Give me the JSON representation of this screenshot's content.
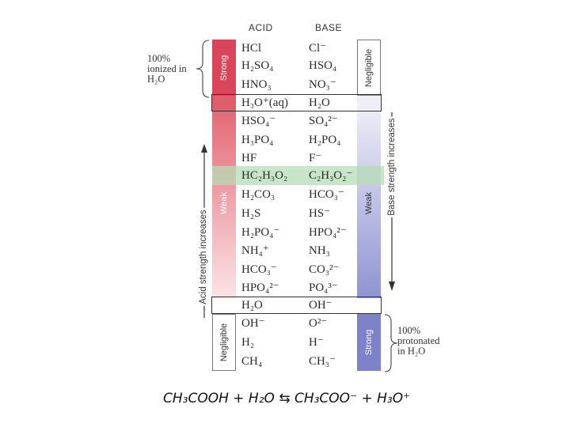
{
  "headers": {
    "acid": "ACID",
    "base": "BASE"
  },
  "pairs": [
    {
      "acid": "HCl",
      "base": "Cl⁻"
    },
    {
      "acid": "H₂SO₄",
      "base": "HSO₄"
    },
    {
      "acid": "HNO₃",
      "base": "NO₃⁻"
    },
    {
      "acid": "H₃O⁺(aq)",
      "base": "H₂O"
    },
    {
      "acid": "HSO₄⁻",
      "base": "SO₄²⁻"
    },
    {
      "acid": "H₃PO₄",
      "base": "H₂PO₄"
    },
    {
      "acid": "HF",
      "base": "F⁻"
    },
    {
      "acid": "HC₂H₃O₂",
      "base": "C₂H₃O₂⁻"
    },
    {
      "acid": "H₂CO₃",
      "base": "HCO₃⁻"
    },
    {
      "acid": "H₂S",
      "base": "HS⁻"
    },
    {
      "acid": "H₂PO₄⁻",
      "base": "HPO₄²⁻"
    },
    {
      "acid": "NH₄⁺",
      "base": "NH₃"
    },
    {
      "acid": "HCO₃⁻",
      "base": "CO₃²⁻"
    },
    {
      "acid": "HPO₄²⁻",
      "base": "PO₄³⁻"
    },
    {
      "acid": "H₂O",
      "base": "OH⁻"
    },
    {
      "acid": "OH⁻",
      "base": "O²⁻"
    },
    {
      "acid": "H₂",
      "base": "H⁻"
    },
    {
      "acid": "CH₄",
      "base": "CH₃⁻"
    }
  ],
  "labels": {
    "acid_strong": "Strong",
    "acid_weak": "Weak",
    "acid_negligible": "Negligible",
    "base_negligible": "Negligible",
    "base_weak": "Weak",
    "base_strong": "Strong",
    "acid_axis": "Acid strength increases",
    "base_axis": "Base strength increases"
  },
  "notes": {
    "ionized": [
      "100%",
      "ionized in",
      "H₂O"
    ],
    "protonated": [
      "100%",
      "protonated",
      "in H₂O"
    ]
  },
  "equation": "CH₃COOH + H₂O ⇆ CH₃COO⁻ + H₃O⁺",
  "colors": {
    "acid_strong": "#d9455a",
    "acid_weak_top": "#e46a78",
    "acid_weak_bottom": "#fbe4e6",
    "base_weak_top": "#ecebf6",
    "base_weak_bottom": "#8f93d2",
    "base_strong": "#7d82c9",
    "highlight": "#cfe8cf"
  }
}
